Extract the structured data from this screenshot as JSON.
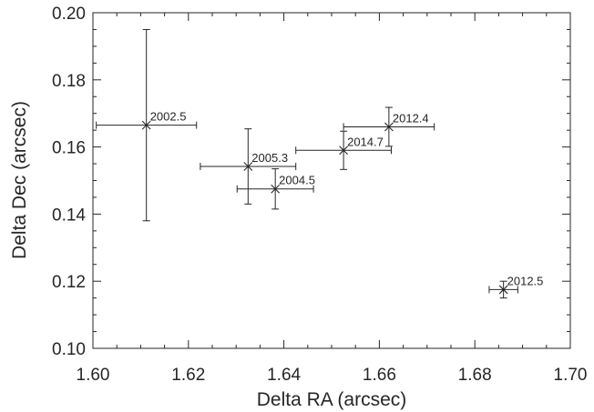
{
  "chart_data": {
    "type": "scatter",
    "title": "",
    "xlabel": "Delta RA (arcsec)",
    "ylabel": "Delta Dec (arcsec)",
    "xlim": [
      1.6,
      1.7
    ],
    "ylim": [
      0.1,
      0.2
    ],
    "xticks": [
      "1.60",
      "1.62",
      "1.64",
      "1.66",
      "1.68",
      "1.70"
    ],
    "yticks": [
      "0.10",
      "0.12",
      "0.14",
      "0.16",
      "0.18",
      "0.20"
    ],
    "grid": false,
    "points": [
      {
        "label": "2002.5",
        "x": 1.6112,
        "y": 0.1665,
        "xerr": 0.0105,
        "yerr": 0.0285
      },
      {
        "label": "2005.3",
        "x": 1.6325,
        "y": 0.1542,
        "xerr": 0.01,
        "yerr": 0.0112
      },
      {
        "label": "2004.5",
        "x": 1.6382,
        "y": 0.1475,
        "xerr": 0.008,
        "yerr": 0.006
      },
      {
        "label": "2014.7",
        "x": 1.6525,
        "y": 0.159,
        "xerr": 0.01,
        "yerr": 0.0057
      },
      {
        "label": "2012.4",
        "x": 1.662,
        "y": 0.166,
        "xerr": 0.0095,
        "yerr": 0.0058
      },
      {
        "label": "2012.5",
        "x": 1.686,
        "y": 0.1175,
        "xerr": 0.003,
        "yerr": 0.0025
      }
    ]
  }
}
